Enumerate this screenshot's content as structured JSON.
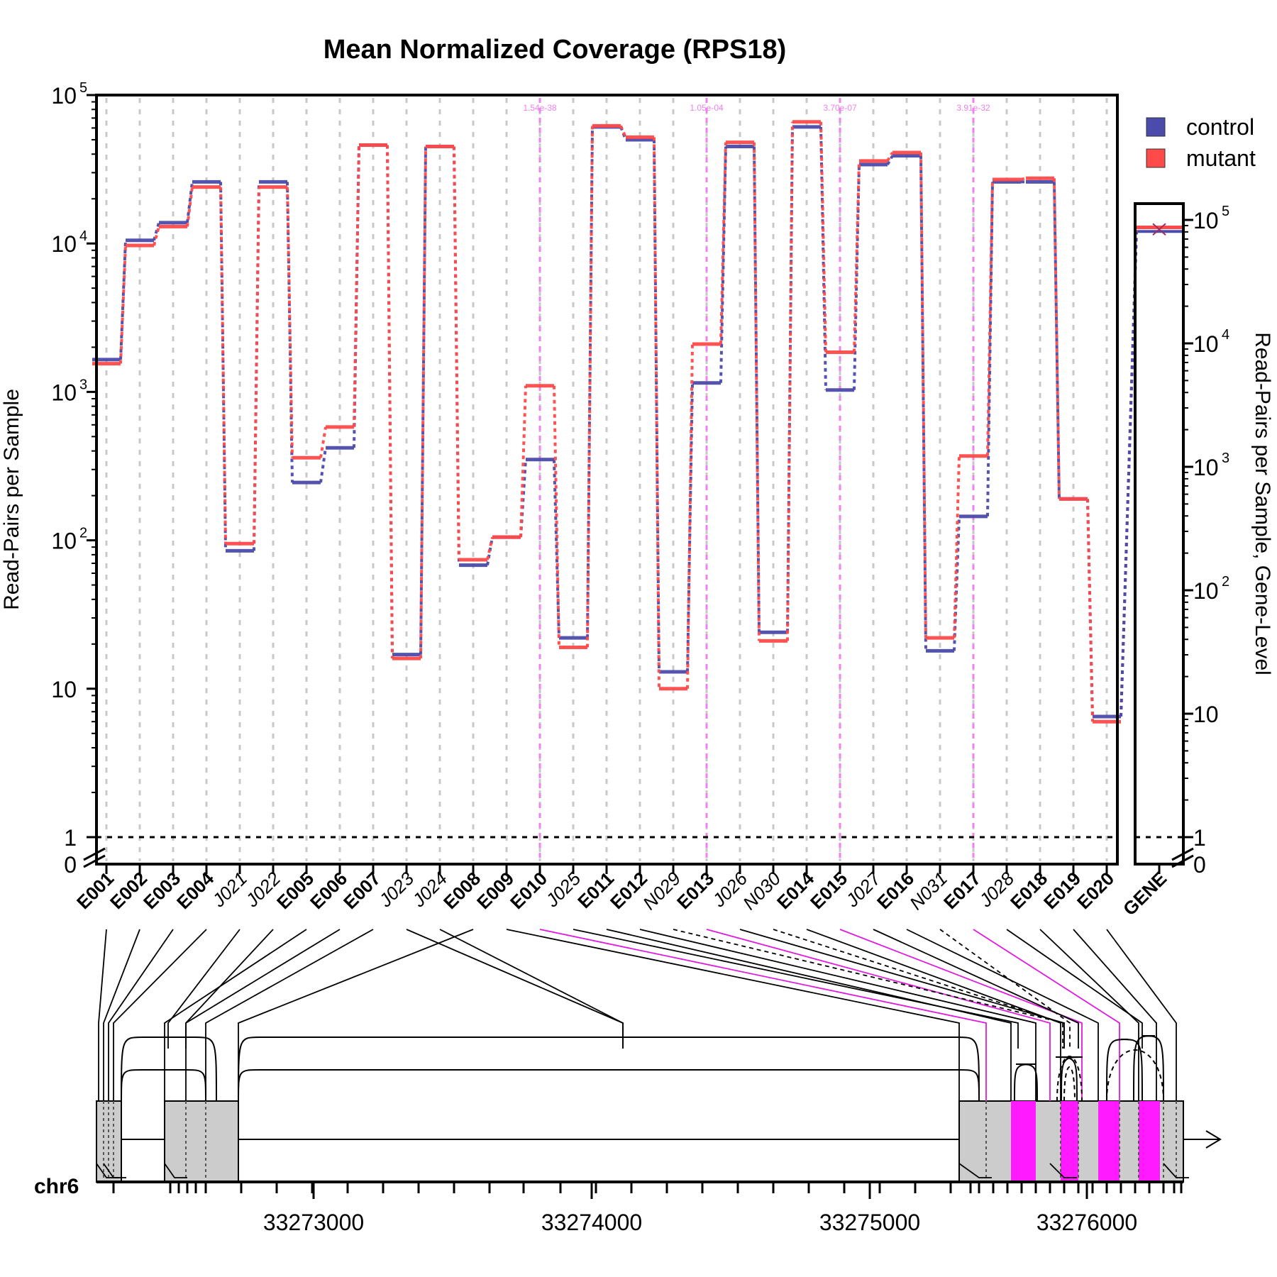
{
  "chart_data": {
    "type": "line",
    "title": "Mean Normalized Coverage (RPS18)",
    "ylabel": "Read-Pairs per Sample",
    "ylabel_right": "Read-Pairs per Sample, Gene-Level",
    "y_scale": "log",
    "ylim": [
      1,
      100000
    ],
    "y_ticks": [
      {
        "label": "10",
        "sup": "5"
      },
      {
        "label": "10",
        "sup": "4"
      },
      {
        "label": "10",
        "sup": "3"
      },
      {
        "label": "10",
        "sup": "2"
      },
      {
        "label": "10",
        "sup": ""
      },
      {
        "label": "1",
        "sup": ""
      },
      {
        "label": "0",
        "sup": ""
      }
    ],
    "right_y_ticks": [
      {
        "label": "10",
        "sup": "5"
      },
      {
        "label": "10",
        "sup": "4"
      },
      {
        "label": "10",
        "sup": "3"
      },
      {
        "label": "10",
        "sup": "2"
      },
      {
        "label": "10",
        "sup": ""
      },
      {
        "label": "1",
        "sup": ""
      },
      {
        "label": "0",
        "sup": ""
      }
    ],
    "categories": [
      "E001",
      "E002",
      "E003",
      "E004",
      "J021",
      "J022",
      "E005",
      "E006",
      "E007",
      "J023",
      "J024",
      "E008",
      "E009",
      "E010",
      "J025",
      "E011",
      "E012",
      "N029",
      "E013",
      "J026",
      "N030",
      "E014",
      "E015",
      "J027",
      "E016",
      "N031",
      "E017",
      "J028",
      "E018",
      "E019",
      "E020"
    ],
    "exon_categories": [
      "E001",
      "E002",
      "E003",
      "E004",
      "E005",
      "E006",
      "E007",
      "E008",
      "E009",
      "E010",
      "E011",
      "E012",
      "E013",
      "E014",
      "E015",
      "E016",
      "E017",
      "E018",
      "E019",
      "E020"
    ],
    "series": [
      {
        "name": "control",
        "color": "#4b4bab",
        "values": [
          1650,
          10500,
          13800,
          26000,
          85,
          26000,
          245,
          420,
          46000,
          17,
          45000,
          68,
          105,
          350,
          22,
          61000,
          50000,
          13,
          1150,
          45000,
          24,
          61000,
          1030,
          34000,
          39000,
          18,
          145,
          26000,
          26000,
          190,
          6.5
        ]
      },
      {
        "name": "mutant",
        "color": "#ff4a4a",
        "values": [
          1550,
          9700,
          13000,
          24000,
          95,
          24000,
          360,
          580,
          46000,
          16,
          45000,
          74,
          105,
          1100,
          19,
          62000,
          52000,
          10,
          2100,
          48000,
          21,
          66000,
          1850,
          36000,
          41000,
          22,
          370,
          27000,
          27500,
          190,
          6
        ]
      }
    ],
    "gene_level": {
      "label": "GENE",
      "control": 85000,
      "mutant": 87000
    },
    "significant_features": [
      {
        "category": "E010",
        "label": "1.54e-38"
      },
      {
        "category": "E013",
        "label": "1.05e-04"
      },
      {
        "category": "E015",
        "label": "3.70e-07"
      },
      {
        "category": "E017",
        "label": "3.91e-32"
      }
    ],
    "legend": {
      "position": "top-right",
      "items": [
        {
          "name": "control",
          "color": "#4b4bab"
        },
        {
          "name": "mutant",
          "color": "#ff4a4a"
        }
      ]
    },
    "gridlines": "vertical-dashed",
    "genome": {
      "chromosome": "chr6",
      "x_ticks": [
        "33273000",
        "33274000",
        "33275000",
        "33276000"
      ]
    }
  }
}
